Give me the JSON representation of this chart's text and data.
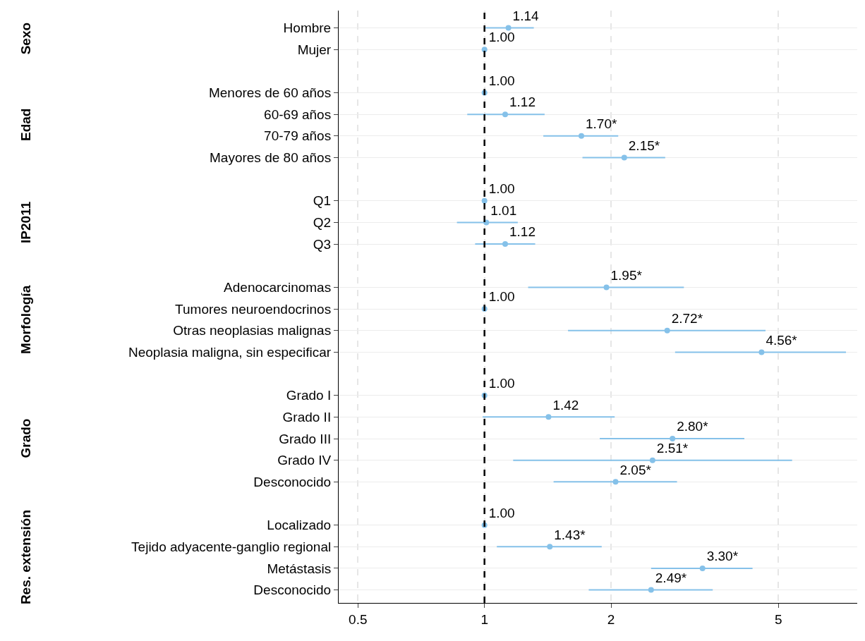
{
  "chart_data": {
    "type": "scatter",
    "orientation": "horizontal",
    "categories": [
      "Hombre",
      "Mujer",
      null,
      "Menores de 60 años",
      "60-69 años",
      "70-79 años",
      "Mayores de 80 años",
      null,
      "Q1",
      "Q2",
      "Q3",
      null,
      "Adenocarcinomas",
      "Tumores neuroendocrinos",
      "Otras neoplasias malignas",
      "Neoplasia maligna, sin especificar",
      null,
      "Grado I",
      "Grado II",
      "Grado III",
      "Grado IV",
      "Desconocido",
      null,
      "Localizado",
      "Tejido adyacente-ganglio regional",
      "Metástasis",
      "Desconocido"
    ],
    "series": [
      {
        "color": "#85c1e9",
        "values": [
          1.14,
          1.0,
          null,
          1.0,
          1.12,
          1.7,
          2.15,
          null,
          1.0,
          1.01,
          1.12,
          null,
          1.95,
          1.0,
          2.72,
          4.56,
          null,
          1.0,
          1.42,
          2.8,
          2.51,
          2.05,
          null,
          1.0,
          1.43,
          3.3,
          2.49
        ],
        "errors": [
          [
            1.0,
            1.31
          ],
          null,
          null,
          null,
          [
            0.91,
            1.39
          ],
          [
            1.38,
            2.08
          ],
          [
            1.71,
            2.69
          ],
          null,
          null,
          [
            0.86,
            1.2
          ],
          [
            0.95,
            1.32
          ],
          null,
          [
            1.27,
            2.98
          ],
          null,
          [
            1.58,
            4.66
          ],
          [
            2.84,
            7.24
          ],
          null,
          null,
          [
            0.99,
            2.04
          ],
          [
            1.88,
            4.15
          ],
          [
            1.17,
            5.39
          ],
          [
            1.46,
            2.87
          ],
          null,
          null,
          [
            1.07,
            1.9
          ],
          [
            2.49,
            4.34
          ],
          [
            1.77,
            3.49
          ]
        ],
        "value_labels": [
          "1.14",
          "1.00",
          null,
          "1.00",
          "1.12",
          "1.70*",
          "2.15*",
          null,
          "1.00",
          "1.01",
          "1.12",
          null,
          "1.95*",
          "1.00",
          "2.72*",
          "4.56*",
          null,
          "1.00",
          "1.42",
          "2.80*",
          "2.51*",
          "2.05*",
          null,
          "1.00",
          "1.43*",
          "3.30*",
          "2.49*"
        ]
      }
    ],
    "annotations": [
      "Sexo",
      "Edad",
      "IP2011",
      "Morfología",
      "Grado",
      "Res. extensión"
    ],
    "log": "x",
    "xlim": [
      0.45,
      7.7
    ],
    "xticks": [
      0.5,
      1,
      2,
      5
    ],
    "ref_lines": [
      {
        "axis": "x",
        "value": 1,
        "color": "#000000",
        "line_style": "dashed"
      }
    ],
    "grid": true,
    "marker": "circle"
  }
}
